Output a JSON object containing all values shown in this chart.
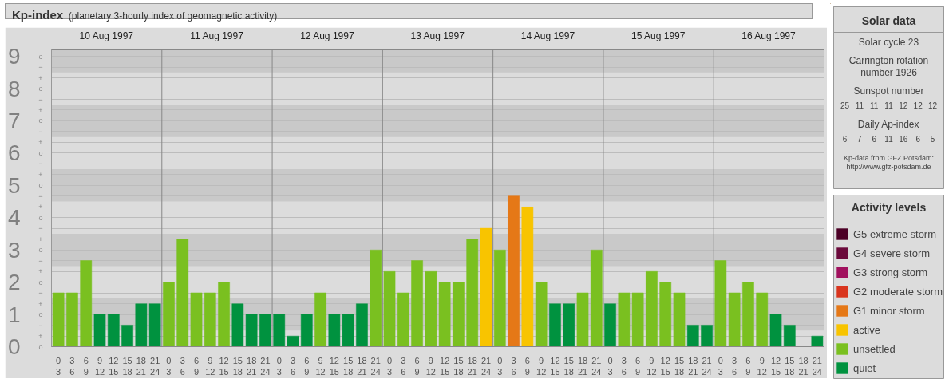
{
  "chart_data": [
    {
      "type": "bar",
      "title": "Kp-index",
      "subtitle": "(planetary 3-hourly index of geomagnetic activity)",
      "categories": [
        "0\n3",
        "3\n6",
        "6\n9",
        "9\n12",
        "12\n15",
        "15\n18",
        "18\n21",
        "21\n24",
        "0\n3",
        "3\n6",
        "6\n9",
        "9\n12",
        "12\n15",
        "15\n18",
        "18\n21",
        "21\n24",
        "0\n3",
        "3\n6",
        "6\n9",
        "9\n12",
        "12\n15",
        "15\n18",
        "18\n21",
        "21\n24",
        "0\n3",
        "3\n6",
        "6\n9",
        "9\n12",
        "12\n15",
        "15\n18",
        "18\n21",
        "21\n24",
        "0\n3",
        "3\n6",
        "6\n9",
        "9\n12",
        "12\n15",
        "15\n18",
        "18\n21",
        "21\n24",
        "0\n3",
        "3\n6",
        "6\n9",
        "9\n12",
        "12\n15",
        "15\n18",
        "18\n21",
        "21\n24",
        "0\n3",
        "3\n6",
        "6\n9",
        "9\n12",
        "12\n15",
        "15\n18",
        "18\n21",
        "21\n24"
      ],
      "annotations": [
        "10 Aug 1997",
        "11 Aug 1997",
        "12 Aug 1997",
        "13 Aug 1997",
        "14 Aug 1997",
        "15 Aug 1997",
        "16 Aug 1997",
        "o",
        "+",
        "−",
        "o",
        "+",
        "−",
        "o",
        "+",
        "−",
        "o",
        "+",
        "−",
        "o",
        "+",
        "−",
        "o",
        "+",
        "−",
        "o",
        "+",
        "−",
        "o",
        "+",
        "−",
        "o",
        "+",
        "−",
        "o"
      ],
      "legend": "right",
      "legend_title": "Activity levels",
      "grid": "y",
      "ylim": [
        0,
        9.2
      ],
      "yticks": [
        0,
        1,
        2,
        3,
        4,
        5,
        6,
        7,
        8,
        9
      ],
      "bands": [
        {
          "axis": "y",
          "from": 0.5,
          "to": 1.5,
          "color": "#c9c9c9"
        },
        {
          "axis": "y",
          "from": 2.5,
          "to": 3.5,
          "color": "#c9c9c9"
        },
        {
          "axis": "y",
          "from": 4.5,
          "to": 5.5,
          "color": "#c9c9c9"
        },
        {
          "axis": "y",
          "from": 6.5,
          "to": 7.5,
          "color": "#c9c9c9"
        },
        {
          "axis": "y",
          "from": 8.5,
          "to": 9.5,
          "color": "#c9c9c9"
        }
      ],
      "series": [
        {
          "name": "G5 extreme storm",
          "color": "#4c0026",
          "values": [
            null,
            null,
            null,
            null,
            null,
            null,
            null,
            null,
            null,
            null,
            null,
            null,
            null,
            null,
            null,
            null,
            null,
            null,
            null,
            null,
            null,
            null,
            null,
            null,
            null,
            null,
            null,
            null,
            null,
            null,
            null,
            null,
            null,
            null,
            null,
            null,
            null,
            null,
            null,
            null,
            null,
            null,
            null,
            null,
            null,
            null,
            null,
            null,
            null,
            null,
            null,
            null,
            null,
            null,
            null,
            null
          ]
        },
        {
          "name": "G4 severe storm",
          "color": "#6b0a3b",
          "values": [
            null,
            null,
            null,
            null,
            null,
            null,
            null,
            null,
            null,
            null,
            null,
            null,
            null,
            null,
            null,
            null,
            null,
            null,
            null,
            null,
            null,
            null,
            null,
            null,
            null,
            null,
            null,
            null,
            null,
            null,
            null,
            null,
            null,
            null,
            null,
            null,
            null,
            null,
            null,
            null,
            null,
            null,
            null,
            null,
            null,
            null,
            null,
            null,
            null,
            null,
            null,
            null,
            null,
            null,
            null,
            null
          ]
        },
        {
          "name": "G3 strong storm",
          "color": "#a1115e",
          "values": [
            null,
            null,
            null,
            null,
            null,
            null,
            null,
            null,
            null,
            null,
            null,
            null,
            null,
            null,
            null,
            null,
            null,
            null,
            null,
            null,
            null,
            null,
            null,
            null,
            null,
            null,
            null,
            null,
            null,
            null,
            null,
            null,
            null,
            null,
            null,
            null,
            null,
            null,
            null,
            null,
            null,
            null,
            null,
            null,
            null,
            null,
            null,
            null,
            null,
            null,
            null,
            null,
            null,
            null,
            null,
            null
          ]
        },
        {
          "name": "G2 moderate storm",
          "color": "#d9351e",
          "values": [
            null,
            null,
            null,
            null,
            null,
            null,
            null,
            null,
            null,
            null,
            null,
            null,
            null,
            null,
            null,
            null,
            null,
            null,
            null,
            null,
            null,
            null,
            null,
            null,
            null,
            null,
            null,
            null,
            null,
            null,
            null,
            null,
            null,
            null,
            null,
            null,
            null,
            null,
            null,
            null,
            null,
            null,
            null,
            null,
            null,
            null,
            null,
            null,
            null,
            null,
            null,
            null,
            null,
            null,
            null,
            null
          ]
        },
        {
          "name": "G1 minor storm",
          "color": "#e57817",
          "values": [
            null,
            null,
            null,
            null,
            null,
            null,
            null,
            null,
            null,
            null,
            null,
            null,
            null,
            null,
            null,
            null,
            null,
            null,
            null,
            null,
            null,
            null,
            null,
            null,
            null,
            null,
            null,
            null,
            null,
            null,
            null,
            null,
            null,
            4.67,
            null,
            null,
            null,
            null,
            null,
            null,
            null,
            null,
            null,
            null,
            null,
            null,
            null,
            null,
            null,
            null,
            null,
            null,
            null,
            null,
            null,
            null
          ]
        },
        {
          "name": "active",
          "color": "#f8c400",
          "values": [
            null,
            null,
            null,
            null,
            null,
            null,
            null,
            null,
            null,
            null,
            null,
            null,
            null,
            null,
            null,
            null,
            null,
            null,
            null,
            null,
            null,
            null,
            null,
            null,
            null,
            null,
            null,
            null,
            null,
            null,
            null,
            3.67,
            null,
            null,
            4.33,
            null,
            null,
            null,
            null,
            null,
            null,
            null,
            null,
            null,
            null,
            null,
            null,
            null,
            null,
            null,
            null,
            null,
            null,
            null,
            null,
            null
          ]
        },
        {
          "name": "unsettled",
          "color": "#7ac020",
          "values": [
            1.67,
            1.67,
            2.67,
            null,
            null,
            null,
            null,
            null,
            2,
            3.33,
            1.67,
            1.67,
            2,
            null,
            null,
            null,
            null,
            null,
            null,
            1.67,
            null,
            null,
            null,
            3,
            2.33,
            1.67,
            2.67,
            2.33,
            2,
            2,
            3.33,
            null,
            3,
            null,
            null,
            2,
            null,
            null,
            1.67,
            3,
            null,
            1.67,
            1.67,
            2.33,
            2,
            1.67,
            null,
            null,
            2.67,
            1.67,
            2,
            1.67,
            null,
            null,
            null,
            null
          ]
        },
        {
          "name": "quiet",
          "color": "#00923f",
          "values": [
            null,
            null,
            null,
            1,
            1,
            0.67,
            1.33,
            1.33,
            null,
            null,
            null,
            null,
            null,
            1.33,
            1,
            1,
            1,
            0.33,
            1,
            null,
            1,
            1,
            1.33,
            null,
            null,
            null,
            null,
            null,
            null,
            null,
            null,
            null,
            null,
            null,
            null,
            null,
            1.33,
            1.33,
            null,
            null,
            1.33,
            null,
            null,
            null,
            null,
            null,
            0.67,
            0.67,
            null,
            null,
            null,
            null,
            1,
            0.67,
            0,
            0.33
          ]
        }
      ]
    },
    {
      "type": "other",
      "title": "Solar data",
      "annotations": [
        "Solar cycle 23",
        "Carrington rotation number 1926",
        "Sunspot number",
        "25 11 11 11 12 12 12",
        "Daily Ap-index",
        "6 7 6 11 16 6 5",
        "Kp-data from GFZ Potsdam:",
        "http://www.gfz-potsdam.de"
      ]
    }
  ]
}
